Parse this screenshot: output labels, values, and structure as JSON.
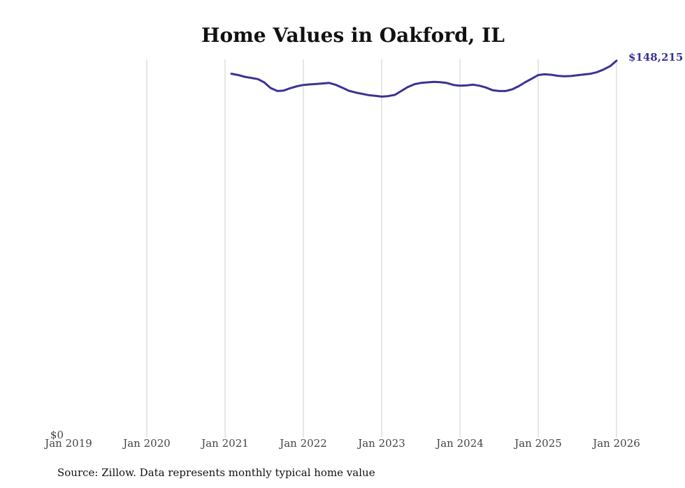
{
  "chart_data": {
    "type": "line",
    "title": "Home Values in Oakford, IL",
    "xlabel": "",
    "ylabel": "",
    "x_ticks": [
      "Jan 2019",
      "Jan 2020",
      "Jan 2021",
      "Jan 2022",
      "Jan 2023",
      "Jan 2024",
      "Jan 2025",
      "Jan 2026"
    ],
    "y_ticks": [
      "$0"
    ],
    "xlim": [
      2019.0,
      2026.0
    ],
    "ylim": [
      0,
      148215
    ],
    "grid": "vertical",
    "series": [
      {
        "name": "Home value",
        "color": "#3a3393",
        "x": [
          2021.08,
          2021.17,
          2021.25,
          2021.33,
          2021.42,
          2021.5,
          2021.58,
          2021.67,
          2021.75,
          2021.83,
          2021.92,
          2022.0,
          2022.08,
          2022.17,
          2022.25,
          2022.33,
          2022.42,
          2022.5,
          2022.58,
          2022.67,
          2022.75,
          2022.83,
          2022.92,
          2023.0,
          2023.08,
          2023.17,
          2023.25,
          2023.33,
          2023.42,
          2023.5,
          2023.58,
          2023.67,
          2023.75,
          2023.83,
          2023.92,
          2024.0,
          2024.08,
          2024.17,
          2024.25,
          2024.33,
          2024.42,
          2024.5,
          2024.58,
          2024.67,
          2024.75,
          2024.83,
          2024.92,
          2025.0,
          2025.08,
          2025.17,
          2025.25,
          2025.33,
          2025.42,
          2025.5,
          2025.58,
          2025.67,
          2025.75,
          2025.83,
          2025.92,
          2026.0
        ],
        "values": [
          143100,
          142600,
          141900,
          141500,
          141000,
          139700,
          137500,
          136300,
          136500,
          137400,
          138200,
          138700,
          138900,
          139100,
          139300,
          139500,
          138700,
          137600,
          136400,
          135700,
          135200,
          134700,
          134400,
          134100,
          134300,
          134800,
          136300,
          137800,
          139000,
          139500,
          139700,
          139900,
          139800,
          139500,
          138700,
          138400,
          138500,
          138800,
          138400,
          137700,
          136600,
          136300,
          136300,
          137000,
          138200,
          139700,
          141200,
          142600,
          142900,
          142700,
          142300,
          142100,
          142200,
          142500,
          142800,
          143100,
          143700,
          144700,
          146100,
          148215
        ]
      }
    ],
    "end_label": "$148,215"
  },
  "source": "Source: Zillow. Data represents monthly typical home value"
}
